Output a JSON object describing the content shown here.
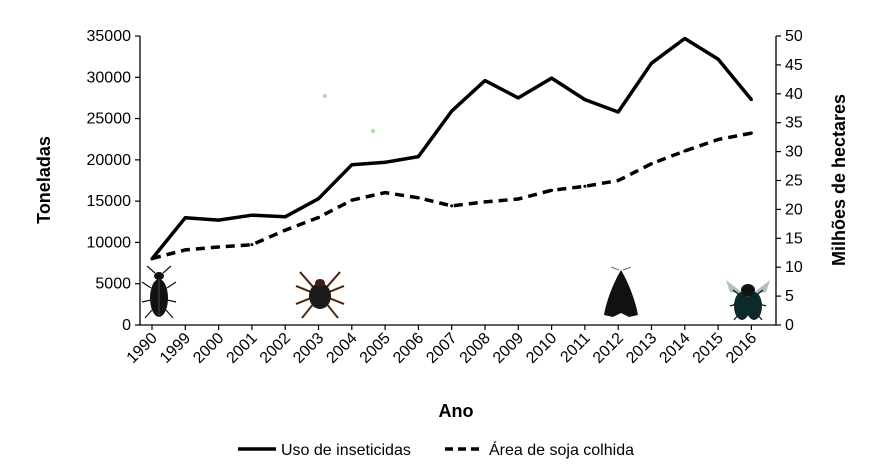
{
  "chart_data": {
    "type": "line",
    "xlabel": "Ano",
    "ylabel_left": "Toneladas",
    "ylabel_right": "Milhões de hectares",
    "categories": [
      "1990",
      "1999",
      "2000",
      "2001",
      "2002",
      "2003",
      "2004",
      "2005",
      "2006",
      "2007",
      "2008",
      "2009",
      "2010",
      "2011",
      "2012",
      "2013",
      "2014",
      "2015",
      "2016"
    ],
    "ylim_left": [
      0,
      35000
    ],
    "ylim_right": [
      0,
      50
    ],
    "yticks_left": [
      "0",
      "5000",
      "10000",
      "15000",
      "20000",
      "25000",
      "30000",
      "35000"
    ],
    "yticks_right": [
      "0",
      "5",
      "10",
      "15",
      "20",
      "25",
      "30",
      "35",
      "40",
      "45",
      "50"
    ],
    "grid": false,
    "legend_position": "bottom",
    "series": [
      {
        "name": "Uso de inseticidas",
        "axis": "left",
        "style": "solid",
        "color": "#000000",
        "values": [
          8000,
          13000,
          12700,
          13300,
          13100,
          15300,
          19400,
          19700,
          20400,
          25900,
          29600,
          27500,
          29900,
          27300,
          25800,
          31700,
          34700,
          32200,
          27300
        ]
      },
      {
        "name": "Área de soja colhida",
        "axis": "right",
        "style": "dashed",
        "color": "#000000",
        "values": [
          11.5,
          13.0,
          13.5,
          13.9,
          16.4,
          18.6,
          21.6,
          22.9,
          22.0,
          20.6,
          21.3,
          21.8,
          23.3,
          24.0,
          25.0,
          27.9,
          30.1,
          32.1,
          33.2
        ]
      }
    ],
    "insect_icons": [
      {
        "name": "beetle-icon",
        "category": "1990"
      },
      {
        "name": "mite-icon",
        "category": "2003"
      },
      {
        "name": "moth-icon",
        "category": "2012"
      },
      {
        "name": "fly-icon",
        "category": "2016"
      }
    ]
  }
}
